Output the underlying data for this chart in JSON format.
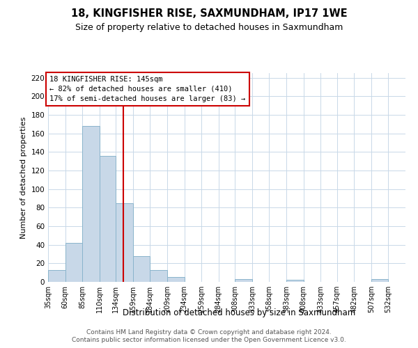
{
  "title": "18, KINGFISHER RISE, SAXMUNDHAM, IP17 1WE",
  "subtitle": "Size of property relative to detached houses in Saxmundham",
  "xlabel": "Distribution of detached houses by size in Saxmundham",
  "ylabel": "Number of detached properties",
  "footer_line1": "Contains HM Land Registry data © Crown copyright and database right 2024.",
  "footer_line2": "Contains public sector information licensed under the Open Government Licence v3.0.",
  "bin_labels": [
    "35sqm",
    "60sqm",
    "85sqm",
    "110sqm",
    "134sqm",
    "159sqm",
    "184sqm",
    "209sqm",
    "234sqm",
    "259sqm",
    "284sqm",
    "308sqm",
    "333sqm",
    "358sqm",
    "383sqm",
    "408sqm",
    "433sqm",
    "457sqm",
    "482sqm",
    "507sqm",
    "532sqm"
  ],
  "bin_edges": [
    35,
    60,
    85,
    110,
    134,
    159,
    184,
    209,
    234,
    259,
    284,
    308,
    333,
    358,
    383,
    408,
    433,
    457,
    482,
    507,
    532,
    557
  ],
  "bar_values": [
    13,
    42,
    168,
    136,
    85,
    28,
    13,
    5,
    0,
    0,
    0,
    3,
    0,
    0,
    2,
    0,
    0,
    0,
    0,
    3,
    0
  ],
  "bar_color": "#c8d8e8",
  "bar_edgecolor": "#8ab4cc",
  "property_size": 145,
  "vline_color": "#cc0000",
  "annotation_box_color": "#cc0000",
  "annotation_text_line1": "18 KINGFISHER RISE: 145sqm",
  "annotation_text_line2": "← 82% of detached houses are smaller (410)",
  "annotation_text_line3": "17% of semi-detached houses are larger (83) →",
  "ylim": [
    0,
    225
  ],
  "yticks": [
    0,
    20,
    40,
    60,
    80,
    100,
    120,
    140,
    160,
    180,
    200,
    220
  ],
  "grid_color": "#c8d8e8",
  "background_color": "#ffffff"
}
